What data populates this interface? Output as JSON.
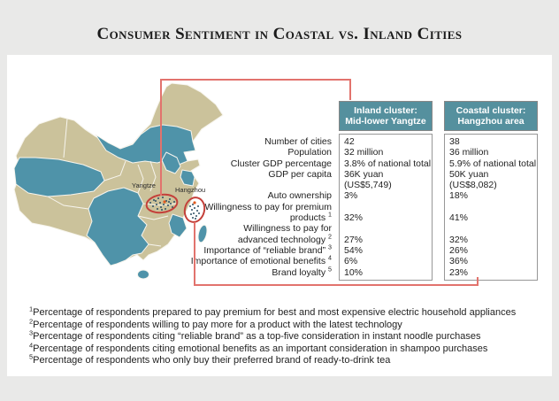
{
  "page": {
    "title": "Consumer Sentiment in Coastal vs. Inland Cities"
  },
  "map": {
    "labels": {
      "yangtze": "Yangtze",
      "hangzhou": "Hangzhou"
    },
    "legend_meaning": {
      "cluster_marker": "red ellipse city cluster",
      "city_dot": "city",
      "key_city_dot": "key city (orange)"
    }
  },
  "table": {
    "columns": [
      {
        "header": "Inland cluster:\nMid-lower Yangtze"
      },
      {
        "header": "Coastal cluster:\nHangzhou area"
      }
    ],
    "rows": [
      {
        "label": "Number of cities",
        "inland": "42",
        "coastal": "38"
      },
      {
        "label": "Population",
        "inland": "32 million",
        "coastal": "36 million"
      },
      {
        "label": "Cluster GDP percentage",
        "inland": "3.8% of national total",
        "coastal": "5.9% of national total"
      },
      {
        "label": "GDP per capita",
        "inland": "36K yuan\n(US$5,749)",
        "coastal": "50K yuan\n(US$8,082)"
      },
      {
        "label": "Auto ownership",
        "inland": "3%",
        "coastal": "18%"
      },
      {
        "label": "Willingness to pay for premium\nproducts ",
        "sup": "1",
        "inland": "32%",
        "coastal": "41%"
      },
      {
        "label": "Willingness to pay for\nadvanced technology ",
        "sup": "2",
        "inland": "27%",
        "coastal": "32%"
      },
      {
        "label": "Importance of “reliable brand” ",
        "sup": "3",
        "inland": "54%",
        "coastal": "26%"
      },
      {
        "label": "Importance of emotional benefits ",
        "sup": "4",
        "inland": "6%",
        "coastal": "36%"
      },
      {
        "label": "Brand loyalty ",
        "sup": "5",
        "inland": "10%",
        "coastal": "23%"
      }
    ]
  },
  "footnotes": [
    {
      "sup": "1",
      "text": "Percentage of respondents prepared to pay premium for best and most expensive electric household appliances"
    },
    {
      "sup": "2",
      "text": "Percentage of respondents willing to pay more for a product with the latest technology"
    },
    {
      "sup": "3",
      "text": "Percentage of respondents citing “reliable brand” as a top-five consideration in instant noodle purchases"
    },
    {
      "sup": "4",
      "text": "Percentage of respondents citing emotional benefits as an important consideration in shampoo purchases"
    },
    {
      "sup": "5",
      "text": "Percentage of respondents who only buy their preferred brand of ready-to-drink tea"
    }
  ],
  "colors": {
    "background": "#e9e9e8",
    "panel": "#ffffff",
    "header_teal": "#55909e",
    "map_teal": "#4f93a9",
    "map_tan": "#cbc29b",
    "callout_red_line": "#e2736d",
    "cluster_ellipse_red": "#c4403a",
    "key_city_orange": "#e05a1e"
  },
  "chart_data": {
    "type": "table",
    "title": "Consumer Sentiment in Coastal vs. Inland Cities",
    "columns": [
      "Inland cluster: Mid-lower Yangtze",
      "Coastal cluster: Hangzhou area"
    ],
    "rows": [
      [
        "Number of cities",
        "42",
        "38"
      ],
      [
        "Population",
        "32 million",
        "36 million"
      ],
      [
        "Cluster GDP percentage",
        "3.8% of national total",
        "5.9% of national total"
      ],
      [
        "GDP per capita",
        "36K yuan (US$5,749)",
        "50K yuan (US$8,082)"
      ],
      [
        "Auto ownership",
        "3%",
        "18%"
      ],
      [
        "Willingness to pay for premium products",
        "32%",
        "41%"
      ],
      [
        "Willingness to pay for advanced technology",
        "27%",
        "32%"
      ],
      [
        "Importance of \"reliable brand\"",
        "54%",
        "26%"
      ],
      [
        "Importance of emotional benefits",
        "6%",
        "36%"
      ],
      [
        "Brand loyalty",
        "10%",
        "23%"
      ]
    ],
    "annotations": [
      "Map of China highlighting Yangtze inland cluster and Hangzhou coastal cluster"
    ]
  }
}
